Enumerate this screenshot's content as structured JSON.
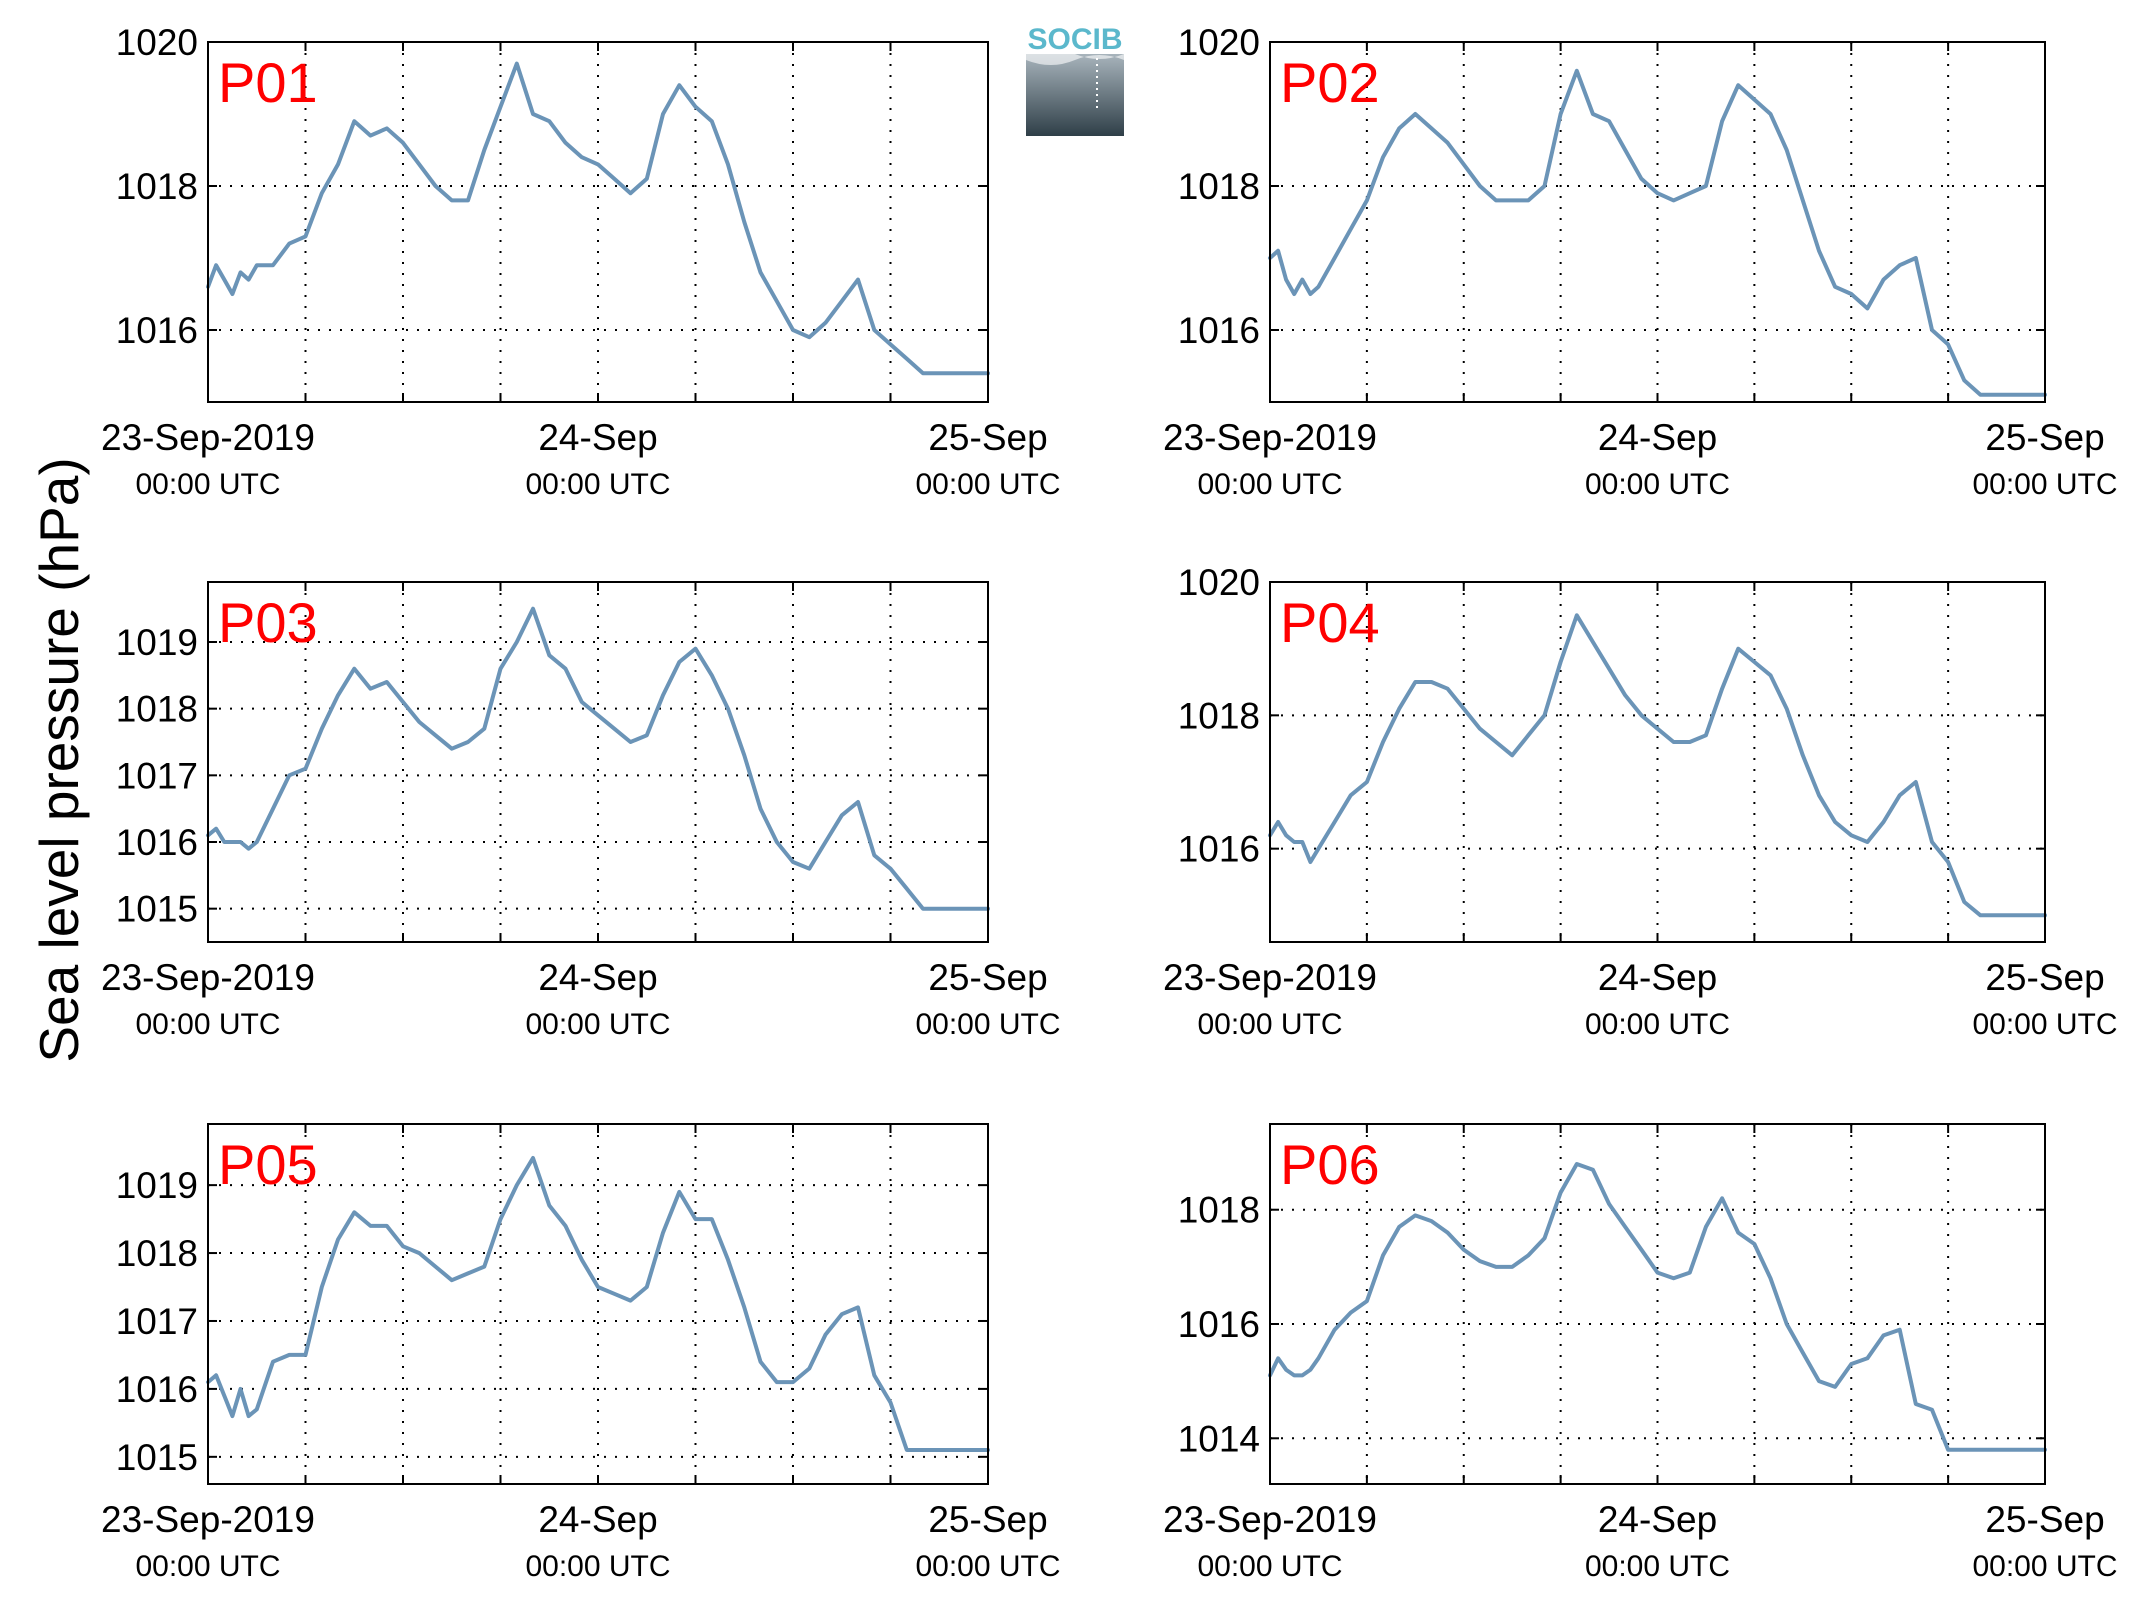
{
  "ylabel": "Sea level pressure (hPa)",
  "logo": {
    "text": "SOCIB"
  },
  "colors": {
    "line": "#6b94b7",
    "label": "#ff0000",
    "axis": "#000000",
    "logo_text": "#5bb8cc",
    "logo_top": "#a8b4bc",
    "logo_bottom": "#2f3f48"
  },
  "chart_data": [
    {
      "type": "line",
      "label": "P01",
      "ylim": [
        1015.0,
        1020.0
      ],
      "yticks": [
        1016,
        1018,
        1020
      ],
      "xlim": [
        0,
        48
      ],
      "xticks": [
        {
          "value": 0,
          "date": "23-Sep-2019",
          "time": "00:00 UTC"
        },
        {
          "value": 24,
          "date": "24-Sep",
          "time": "00:00 UTC"
        },
        {
          "value": 48,
          "date": "25-Sep",
          "time": "00:00 UTC"
        }
      ],
      "x": [
        0,
        0.5,
        1,
        1.5,
        2,
        2.5,
        3,
        4,
        5,
        6,
        7,
        8,
        9,
        10,
        11,
        12,
        13,
        14,
        15,
        16,
        17,
        18,
        19,
        20,
        21,
        22,
        23,
        24,
        25,
        26,
        27,
        28,
        29,
        30,
        31,
        32,
        33,
        34,
        35,
        36,
        37,
        38,
        39,
        40,
        41,
        42,
        43,
        44,
        45,
        46,
        47,
        48
      ],
      "values": [
        1016.6,
        1016.9,
        1016.7,
        1016.5,
        1016.8,
        1016.7,
        1016.9,
        1016.9,
        1017.2,
        1017.3,
        1017.9,
        1018.3,
        1018.9,
        1018.7,
        1018.8,
        1018.6,
        1018.3,
        1018.0,
        1017.8,
        1017.8,
        1018.5,
        1019.1,
        1019.7,
        1019.0,
        1018.9,
        1018.6,
        1018.4,
        1018.3,
        1018.1,
        1017.9,
        1018.1,
        1019.0,
        1019.4,
        1019.1,
        1018.9,
        1018.3,
        1017.5,
        1016.8,
        1016.4,
        1016.0,
        1015.9,
        1016.1,
        1016.4,
        1016.7,
        1016.0,
        1015.8,
        1015.6,
        1015.4,
        1015.4,
        1015.4,
        1015.4,
        1015.4
      ]
    },
    {
      "type": "line",
      "label": "P02",
      "ylim": [
        1015.0,
        1020.0
      ],
      "yticks": [
        1016,
        1018,
        1020
      ],
      "xlim": [
        0,
        48
      ],
      "xticks": [
        {
          "value": 0,
          "date": "23-Sep-2019",
          "time": "00:00 UTC"
        },
        {
          "value": 24,
          "date": "24-Sep",
          "time": "00:00 UTC"
        },
        {
          "value": 48,
          "date": "25-Sep",
          "time": "00:00 UTC"
        }
      ],
      "x": [
        0,
        0.5,
        1,
        1.5,
        2,
        2.5,
        3,
        4,
        5,
        6,
        7,
        8,
        9,
        10,
        11,
        12,
        13,
        14,
        15,
        16,
        17,
        18,
        19,
        20,
        21,
        22,
        23,
        24,
        25,
        26,
        27,
        28,
        29,
        30,
        31,
        32,
        33,
        34,
        35,
        36,
        37,
        38,
        39,
        40,
        41,
        42,
        43,
        44,
        45,
        46,
        47,
        48
      ],
      "values": [
        1017.0,
        1017.1,
        1016.7,
        1016.5,
        1016.7,
        1016.5,
        1016.6,
        1017.0,
        1017.4,
        1017.8,
        1018.4,
        1018.8,
        1019.0,
        1018.8,
        1018.6,
        1018.3,
        1018.0,
        1017.8,
        1017.8,
        1017.8,
        1018.0,
        1019.0,
        1019.6,
        1019.0,
        1018.9,
        1018.5,
        1018.1,
        1017.9,
        1017.8,
        1017.9,
        1018.0,
        1018.9,
        1019.4,
        1019.2,
        1019.0,
        1018.5,
        1017.8,
        1017.1,
        1016.6,
        1016.5,
        1016.3,
        1016.7,
        1016.9,
        1017.0,
        1016.0,
        1015.8,
        1015.3,
        1015.1,
        1015.1,
        1015.1,
        1015.1,
        1015.1
      ]
    },
    {
      "type": "line",
      "label": "P03",
      "ylim": [
        1014.5,
        1019.9
      ],
      "yticks": [
        1015,
        1016,
        1017,
        1018,
        1019
      ],
      "xlim": [
        0,
        48
      ],
      "xticks": [
        {
          "value": 0,
          "date": "23-Sep-2019",
          "time": "00:00 UTC"
        },
        {
          "value": 24,
          "date": "24-Sep",
          "time": "00:00 UTC"
        },
        {
          "value": 48,
          "date": "25-Sep",
          "time": "00:00 UTC"
        }
      ],
      "x": [
        0,
        0.5,
        1,
        1.5,
        2,
        2.5,
        3,
        4,
        5,
        6,
        7,
        8,
        9,
        10,
        11,
        12,
        13,
        14,
        15,
        16,
        17,
        18,
        19,
        20,
        21,
        22,
        23,
        24,
        25,
        26,
        27,
        28,
        29,
        30,
        31,
        32,
        33,
        34,
        35,
        36,
        37,
        38,
        39,
        40,
        41,
        42,
        43,
        44,
        45,
        46,
        47,
        48
      ],
      "values": [
        1016.1,
        1016.2,
        1016.0,
        1016.0,
        1016.0,
        1015.9,
        1016.0,
        1016.5,
        1017.0,
        1017.1,
        1017.7,
        1018.2,
        1018.6,
        1018.3,
        1018.4,
        1018.1,
        1017.8,
        1017.6,
        1017.4,
        1017.5,
        1017.7,
        1018.6,
        1019.0,
        1019.5,
        1018.8,
        1018.6,
        1018.1,
        1017.9,
        1017.7,
        1017.5,
        1017.6,
        1018.2,
        1018.7,
        1018.9,
        1018.5,
        1018.0,
        1017.3,
        1016.5,
        1016.0,
        1015.7,
        1015.6,
        1016.0,
        1016.4,
        1016.6,
        1015.8,
        1015.6,
        1015.3,
        1015.0,
        1015.0,
        1015.0,
        1015.0,
        1015.0
      ]
    },
    {
      "type": "line",
      "label": "P04",
      "ylim": [
        1014.6,
        1020.0
      ],
      "yticks": [
        1016,
        1018,
        1020
      ],
      "xlim": [
        0,
        48
      ],
      "xticks": [
        {
          "value": 0,
          "date": "23-Sep-2019",
          "time": "00:00 UTC"
        },
        {
          "value": 24,
          "date": "24-Sep",
          "time": "00:00 UTC"
        },
        {
          "value": 48,
          "date": "25-Sep",
          "time": "00:00 UTC"
        }
      ],
      "x": [
        0,
        0.5,
        1,
        1.5,
        2,
        2.5,
        3,
        4,
        5,
        6,
        7,
        8,
        9,
        10,
        11,
        12,
        13,
        14,
        15,
        16,
        17,
        18,
        19,
        20,
        21,
        22,
        23,
        24,
        25,
        26,
        27,
        28,
        29,
        30,
        31,
        32,
        33,
        34,
        35,
        36,
        37,
        38,
        39,
        40,
        41,
        42,
        43,
        44,
        45,
        46,
        47,
        48
      ],
      "values": [
        1016.2,
        1016.4,
        1016.2,
        1016.1,
        1016.1,
        1015.8,
        1016.0,
        1016.4,
        1016.8,
        1017.0,
        1017.6,
        1018.1,
        1018.5,
        1018.5,
        1018.4,
        1018.1,
        1017.8,
        1017.6,
        1017.4,
        1017.7,
        1018.0,
        1018.8,
        1019.5,
        1019.1,
        1018.7,
        1018.3,
        1018.0,
        1017.8,
        1017.6,
        1017.6,
        1017.7,
        1018.4,
        1019.0,
        1018.8,
        1018.6,
        1018.1,
        1017.4,
        1016.8,
        1016.4,
        1016.2,
        1016.1,
        1016.4,
        1016.8,
        1017.0,
        1016.1,
        1015.8,
        1015.2,
        1015.0,
        1015.0,
        1015.0,
        1015.0,
        1015.0
      ]
    },
    {
      "type": "line",
      "label": "P05",
      "ylim": [
        1014.6,
        1019.9
      ],
      "yticks": [
        1015,
        1016,
        1017,
        1018,
        1019
      ],
      "xlim": [
        0,
        48
      ],
      "xticks": [
        {
          "value": 0,
          "date": "23-Sep-2019",
          "time": "00:00 UTC"
        },
        {
          "value": 24,
          "date": "24-Sep",
          "time": "00:00 UTC"
        },
        {
          "value": 48,
          "date": "25-Sep",
          "time": "00:00 UTC"
        }
      ],
      "x": [
        0,
        0.5,
        1,
        1.5,
        2,
        2.5,
        3,
        4,
        5,
        6,
        7,
        8,
        9,
        10,
        11,
        12,
        13,
        14,
        15,
        16,
        17,
        18,
        19,
        20,
        21,
        22,
        23,
        24,
        25,
        26,
        27,
        28,
        29,
        30,
        31,
        32,
        33,
        34,
        35,
        36,
        37,
        38,
        39,
        40,
        41,
        42,
        43,
        44,
        45,
        46,
        47,
        48
      ],
      "values": [
        1016.1,
        1016.2,
        1015.9,
        1015.6,
        1016.0,
        1015.6,
        1015.7,
        1016.4,
        1016.5,
        1016.5,
        1017.5,
        1018.2,
        1018.6,
        1018.4,
        1018.4,
        1018.1,
        1018.0,
        1017.8,
        1017.6,
        1017.7,
        1017.8,
        1018.5,
        1019.0,
        1019.4,
        1018.7,
        1018.4,
        1017.9,
        1017.5,
        1017.4,
        1017.3,
        1017.5,
        1018.3,
        1018.9,
        1018.5,
        1018.5,
        1017.9,
        1017.2,
        1016.4,
        1016.1,
        1016.1,
        1016.3,
        1016.8,
        1017.1,
        1017.2,
        1016.2,
        1015.8,
        1015.1,
        1015.1,
        1015.1,
        1015.1,
        1015.1,
        1015.1
      ]
    },
    {
      "type": "line",
      "label": "P06",
      "ylim": [
        1013.2,
        1019.5
      ],
      "yticks": [
        1014,
        1016,
        1018
      ],
      "xlim": [
        0,
        48
      ],
      "xticks": [
        {
          "value": 0,
          "date": "23-Sep-2019",
          "time": "00:00 UTC"
        },
        {
          "value": 24,
          "date": "24-Sep",
          "time": "00:00 UTC"
        },
        {
          "value": 48,
          "date": "25-Sep",
          "time": "00:00 UTC"
        }
      ],
      "x": [
        0,
        0.5,
        1,
        1.5,
        2,
        2.5,
        3,
        4,
        5,
        6,
        7,
        8,
        9,
        10,
        11,
        12,
        13,
        14,
        15,
        16,
        17,
        18,
        19,
        20,
        21,
        22,
        23,
        24,
        25,
        26,
        27,
        28,
        29,
        30,
        31,
        32,
        33,
        34,
        35,
        36,
        37,
        38,
        39,
        40,
        41,
        42,
        43,
        44,
        45,
        46,
        47,
        48
      ],
      "values": [
        1015.1,
        1015.4,
        1015.2,
        1015.1,
        1015.1,
        1015.2,
        1015.4,
        1015.9,
        1016.2,
        1016.4,
        1017.2,
        1017.7,
        1017.9,
        1017.8,
        1017.6,
        1017.3,
        1017.1,
        1017.0,
        1017.0,
        1017.2,
        1017.5,
        1018.3,
        1018.8,
        1018.7,
        1018.1,
        1017.7,
        1017.3,
        1016.9,
        1016.8,
        1016.9,
        1017.7,
        1018.2,
        1017.6,
        1017.4,
        1016.8,
        1016.0,
        1015.5,
        1015.0,
        1014.9,
        1015.3,
        1015.4,
        1015.8,
        1015.9,
        1014.6,
        1014.5,
        1013.8,
        1013.8,
        1013.8,
        1013.8,
        1013.8,
        1013.8,
        1013.8
      ]
    }
  ]
}
